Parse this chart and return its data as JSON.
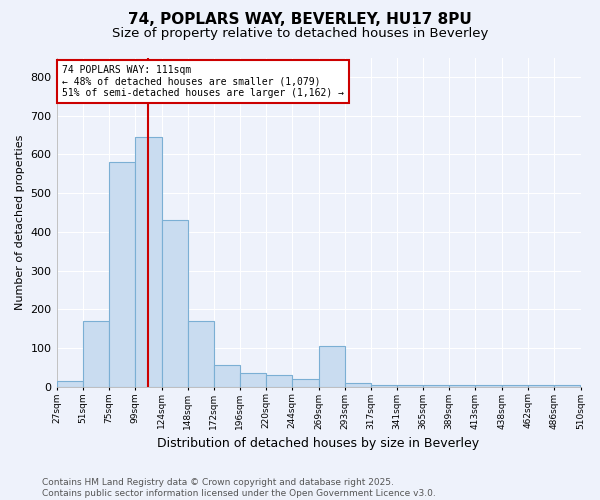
{
  "title1": "74, POPLARS WAY, BEVERLEY, HU17 8PU",
  "title2": "Size of property relative to detached houses in Beverley",
  "xlabel": "Distribution of detached houses by size in Beverley",
  "ylabel": "Number of detached properties",
  "bar_color": "#c9dcf0",
  "bar_edge_color": "#7bafd4",
  "vline_color": "#cc0000",
  "vline_x": 111,
  "annotation_text": "74 POPLARS WAY: 111sqm\n← 48% of detached houses are smaller (1,079)\n51% of semi-detached houses are larger (1,162) →",
  "annotation_box_color": "white",
  "annotation_box_edge": "#cc0000",
  "bins": [
    27,
    51,
    75,
    99,
    124,
    148,
    172,
    196,
    220,
    244,
    269,
    293,
    317,
    341,
    365,
    389,
    413,
    438,
    462,
    486,
    510
  ],
  "bar_heights": [
    15,
    170,
    580,
    645,
    430,
    170,
    55,
    35,
    30,
    20,
    105,
    10,
    5,
    5,
    5,
    5,
    5,
    5,
    5,
    5
  ],
  "ylim": [
    0,
    850
  ],
  "yticks": [
    0,
    100,
    200,
    300,
    400,
    500,
    600,
    700,
    800
  ],
  "background_color": "#eef2fb",
  "grid_color": "white",
  "footer_text": "Contains HM Land Registry data © Crown copyright and database right 2025.\nContains public sector information licensed under the Open Government Licence v3.0.",
  "title1_fontsize": 11,
  "title2_fontsize": 9.5,
  "xlabel_fontsize": 9,
  "ylabel_fontsize": 8,
  "footer_fontsize": 6.5
}
